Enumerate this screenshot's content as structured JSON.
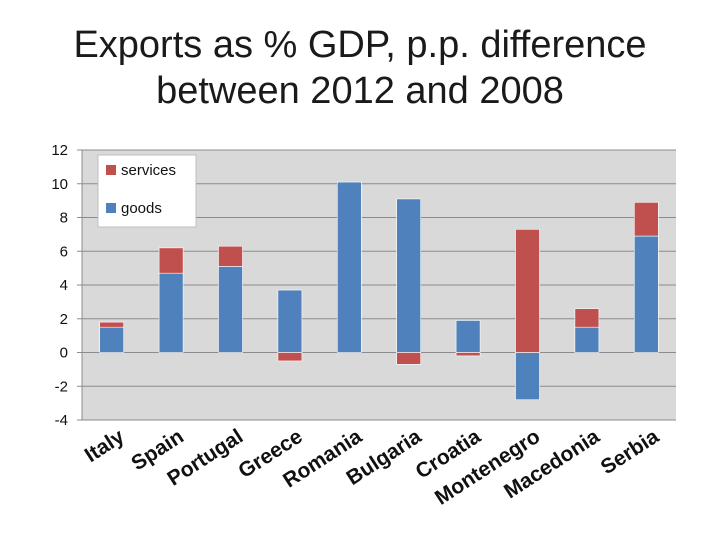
{
  "chart_data": {
    "type": "bar",
    "stacked": true,
    "title_line1": "Exports as % GDP, p.p. difference",
    "title_line2": "between 2012 and 2008",
    "categories": [
      "Italy",
      "Spain",
      "Portugal",
      "Greece",
      "Romania",
      "Bulgaria",
      "Croatia",
      "Montenegro",
      "Macedonia",
      "Serbia"
    ],
    "series": [
      {
        "name": "goods",
        "color": "#4f81bd",
        "values": [
          1.5,
          4.7,
          5.1,
          3.7,
          10.1,
          9.1,
          1.9,
          -2.8,
          1.5,
          6.9
        ]
      },
      {
        "name": "services",
        "color": "#c0504d",
        "values": [
          0.3,
          1.5,
          1.2,
          -0.5,
          0.0,
          -0.7,
          -0.2,
          7.3,
          1.1,
          2.0
        ]
      }
    ],
    "ylim": [
      -4,
      12
    ],
    "yticks": [
      12,
      10,
      8,
      6,
      4,
      2,
      0,
      -2,
      -4
    ],
    "grid": true,
    "legend": {
      "position": "top-left",
      "entries": [
        "services",
        "goods"
      ]
    },
    "xlabel": "",
    "ylabel": ""
  }
}
